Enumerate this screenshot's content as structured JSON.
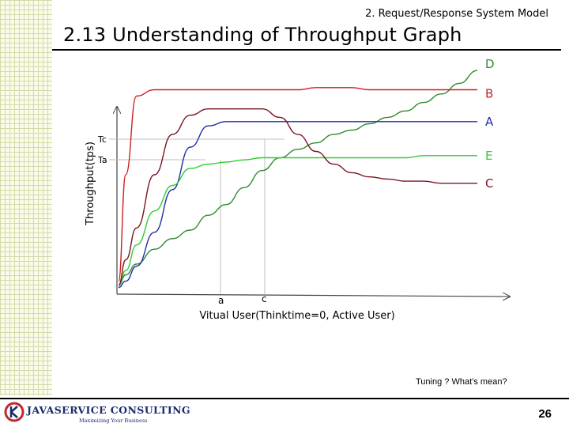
{
  "header": {
    "section": "2. Request/Response System Model",
    "title": "2.13 Understanding of Throughput Graph"
  },
  "chart_data": {
    "type": "line",
    "title": "",
    "ylabel": "Throughput(tps)",
    "xlabel": "Vitual User(Thinktime=0, Active User)",
    "y_ticks": [
      "Tc",
      "Ta"
    ],
    "x_ticks": [
      "a",
      "c"
    ],
    "xlim": [
      0,
      100
    ],
    "ylim": [
      0,
      100
    ],
    "x": [
      0,
      2,
      5,
      10,
      15,
      20,
      25,
      30,
      35,
      40,
      45,
      50,
      55,
      60,
      65,
      70,
      75,
      80,
      85,
      90,
      95,
      100
    ],
    "series": [
      {
        "name": "D",
        "color": "#2e8b2e",
        "values": [
          3,
          8,
          13,
          20,
          25,
          29,
          36,
          41,
          49,
          57,
          63,
          67,
          70,
          74,
          76,
          79,
          82,
          85,
          89,
          93,
          98,
          104
        ]
      },
      {
        "name": "B",
        "color": "#cc1f1f",
        "values": [
          5,
          55,
          92,
          95,
          95,
          95,
          95,
          95,
          95,
          95,
          95,
          95,
          96,
          96,
          96,
          95,
          95,
          95,
          95,
          95,
          95,
          95
        ]
      },
      {
        "name": "A",
        "color": "#1f2fa0",
        "values": [
          2,
          5,
          12,
          28,
          48,
          68,
          78,
          80,
          80,
          80,
          80,
          80,
          80,
          80,
          80,
          80,
          80,
          80,
          80,
          80,
          80,
          80
        ]
      },
      {
        "name": "E",
        "color": "#33cc33",
        "values": [
          3,
          10,
          22,
          38,
          50,
          58,
          60,
          61,
          62,
          63,
          63,
          63,
          63,
          63,
          63,
          63,
          63,
          63,
          64,
          64,
          64,
          64
        ]
      },
      {
        "name": "C",
        "color": "#7a1520",
        "values": [
          3,
          15,
          30,
          55,
          74,
          83,
          86,
          86,
          86,
          86,
          82,
          74,
          66,
          60,
          56,
          54,
          53,
          52,
          52,
          51,
          51,
          51
        ]
      }
    ]
  },
  "footer": {
    "note": "Tuning ? What’s mean?",
    "brand": "JAVASERVICE CONSULTING",
    "tagline": "Maximizing Your Business",
    "page": "26"
  }
}
